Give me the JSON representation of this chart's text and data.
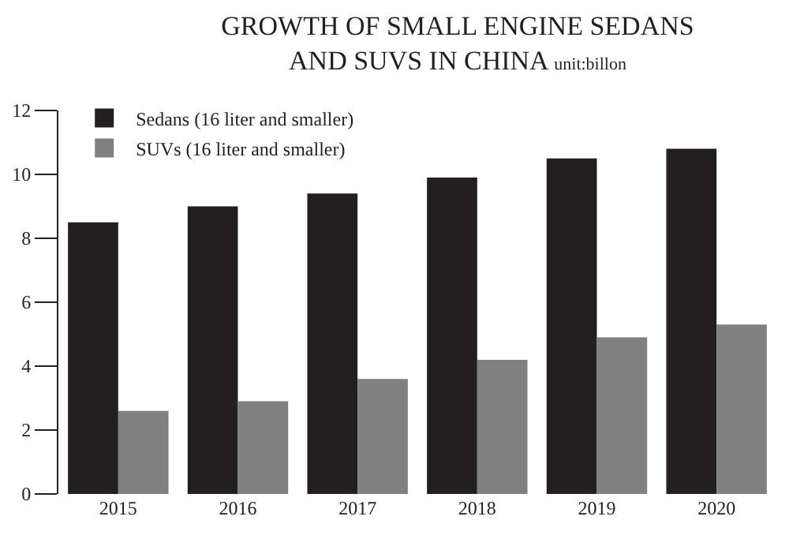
{
  "chart_data": {
    "type": "bar",
    "title": "GROWTH OF SMALL ENGINE SEDANS\nAND SUVS IN CHINA",
    "subtitle": "unit:billon",
    "categories": [
      "2015",
      "2016",
      "2017",
      "2018",
      "2019",
      "2020"
    ],
    "series": [
      {
        "name": "Sedans (16 liter and smaller)",
        "color": "#231f20",
        "values": [
          8.5,
          9.0,
          9.4,
          9.9,
          10.5,
          10.8
        ]
      },
      {
        "name": "SUVs (16 liter and smaller)",
        "color": "#808080",
        "values": [
          2.6,
          2.9,
          3.6,
          4.2,
          4.9,
          5.3
        ]
      }
    ],
    "ylim": [
      0,
      12
    ],
    "yticks": [
      0,
      2,
      4,
      6,
      8,
      10,
      12
    ],
    "legend": "top left"
  }
}
